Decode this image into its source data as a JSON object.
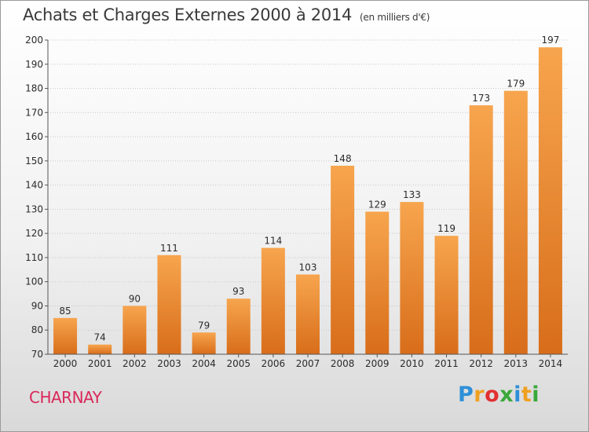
{
  "header": {
    "title": "Achats et Charges Externes 2000 à 2014",
    "subtitle": "(en milliers d'€)"
  },
  "commune": "CHARNAY",
  "logo": {
    "text": "Proxiti",
    "letters": [
      {
        "ch": "P",
        "color": "#2f8fd8"
      },
      {
        "ch": "r",
        "color": "#f0a020"
      },
      {
        "ch": "o",
        "color": "#e23030"
      },
      {
        "ch": "x",
        "color": "#3aa83a"
      },
      {
        "ch": "i",
        "color": "#2f8fd8"
      },
      {
        "ch": "t",
        "color": "#f0a020"
      },
      {
        "ch": "i",
        "color": "#3aa83a"
      }
    ]
  },
  "colors": {
    "bar_top": "#f7a54e",
    "bar_bottom": "#d86d1a",
    "grid": "#c8c8c8",
    "axis": "#555555",
    "commune": "#d9285a"
  },
  "chart_data": {
    "type": "bar",
    "title": "Achats et Charges Externes 2000 à 2014",
    "subtitle": "(en milliers d'€)",
    "categories": [
      "2000",
      "2001",
      "2002",
      "2003",
      "2004",
      "2005",
      "2006",
      "2007",
      "2008",
      "2009",
      "2010",
      "2011",
      "2012",
      "2013",
      "2014"
    ],
    "values": [
      85,
      74,
      90,
      111,
      79,
      93,
      114,
      103,
      148,
      129,
      133,
      119,
      173,
      179,
      197
    ],
    "ylim": [
      70,
      200
    ],
    "yticks": [
      70,
      80,
      90,
      100,
      110,
      120,
      130,
      140,
      150,
      160,
      170,
      180,
      190,
      200
    ],
    "grid": true,
    "data_labels": true
  }
}
